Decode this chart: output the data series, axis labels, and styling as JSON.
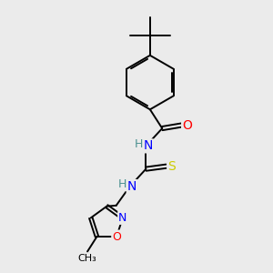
{
  "bg_color": "#ebebeb",
  "atom_colors": {
    "C": "#000000",
    "N": "#0000ff",
    "O": "#ff0000",
    "S": "#cccc00",
    "H": "#4a9090"
  },
  "bond_color": "#000000",
  "font_size": 9,
  "fig_size": [
    3.0,
    3.0
  ],
  "dpi": 100,
  "lw": 1.4
}
